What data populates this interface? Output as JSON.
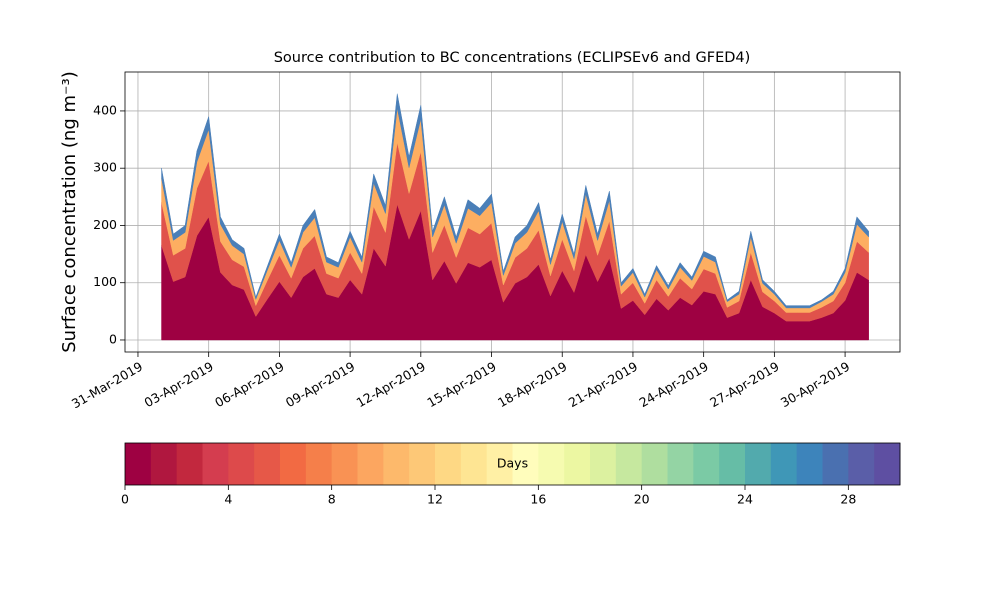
{
  "chart_data": {
    "type": "stacked_area",
    "title": "Source contribution to BC concentrations (ECLIPSEv6 and GFED4)",
    "y_label": "Surface concentration (ng m⁻³)",
    "x": [
      1,
      1.5,
      2,
      2.5,
      3,
      3.5,
      4,
      4.5,
      5,
      5.5,
      6,
      6.5,
      7,
      7.5,
      8,
      8.5,
      9,
      9.5,
      10,
      10.5,
      11,
      11.5,
      12,
      12.5,
      13,
      13.5,
      14,
      14.5,
      15,
      15.5,
      16,
      16.5,
      17,
      17.5,
      18,
      18.5,
      19,
      19.5,
      20,
      20.5,
      21,
      21.5,
      22,
      22.5,
      23,
      23.5,
      24,
      24.5,
      25,
      25.5,
      26,
      26.5,
      27,
      27.5,
      28,
      28.5,
      29,
      29.5,
      30,
      30.5,
      31
    ],
    "series": [
      {
        "color": "#9e0142",
        "values": [
          165,
          102,
          110,
          182,
          215,
          118,
          96,
          88,
          41,
          72,
          102,
          74,
          110,
          125,
          80,
          74,
          105,
          80,
          160,
          129,
          237,
          176,
          226,
          105,
          138,
          99,
          135,
          127,
          140,
          66,
          99,
          110,
          132,
          77,
          121,
          83,
          149,
          102,
          143,
          55,
          69,
          44,
          72,
          52,
          74,
          61,
          85,
          80,
          39,
          47,
          105,
          58,
          47,
          33,
          33,
          33,
          39,
          47,
          69,
          118,
          105
        ]
      },
      {
        "color": "#e0524b",
        "values": [
          75,
          46,
          50,
          83,
          98,
          54,
          44,
          40,
          19,
          33,
          46,
          34,
          50,
          57,
          36,
          34,
          48,
          36,
          73,
          59,
          108,
          80,
          103,
          48,
          63,
          45,
          61,
          58,
          64,
          30,
          45,
          50,
          60,
          35,
          55,
          38,
          68,
          46,
          65,
          25,
          31,
          20,
          33,
          24,
          34,
          28,
          39,
          36,
          18,
          21,
          48,
          26,
          21,
          15,
          15,
          15,
          18,
          21,
          31,
          54,
          48
        ]
      },
      {
        "color": "#fdae61",
        "values": [
          42,
          26,
          28,
          46,
          55,
          30,
          25,
          22,
          11,
          18,
          26,
          19,
          28,
          32,
          20,
          19,
          27,
          20,
          41,
          33,
          60,
          45,
          57,
          27,
          35,
          25,
          34,
          32,
          36,
          17,
          25,
          28,
          34,
          20,
          31,
          21,
          38,
          26,
          36,
          14,
          18,
          11,
          18,
          13,
          19,
          15,
          22,
          20,
          10,
          12,
          27,
          15,
          12,
          8,
          8,
          8,
          10,
          12,
          18,
          30,
          27
        ]
      },
      {
        "color": "#4a7fb8",
        "values": [
          18,
          11,
          12,
          19,
          22,
          13,
          10,
          10,
          4,
          7,
          11,
          8,
          12,
          14,
          9,
          8,
          10,
          9,
          16,
          14,
          25,
          19,
          24,
          10,
          14,
          11,
          15,
          13,
          15,
          7,
          11,
          12,
          14,
          8,
          13,
          8,
          15,
          11,
          16,
          6,
          7,
          5,
          7,
          6,
          8,
          6,
          9,
          9,
          3,
          5,
          10,
          6,
          5,
          4,
          4,
          4,
          3,
          5,
          7,
          13,
          10
        ]
      }
    ],
    "xlim": [
      -0.55,
      32.33
    ],
    "ylim": [
      -21,
      468
    ],
    "xticks": [
      {
        "value": 0,
        "label": "31-Mar-2019"
      },
      {
        "value": 3,
        "label": "03-Apr-2019"
      },
      {
        "value": 6,
        "label": "06-Apr-2019"
      },
      {
        "value": 9,
        "label": "09-Apr-2019"
      },
      {
        "value": 12,
        "label": "12-Apr-2019"
      },
      {
        "value": 15,
        "label": "15-Apr-2019"
      },
      {
        "value": 18,
        "label": "18-Apr-2019"
      },
      {
        "value": 21,
        "label": "21-Apr-2019"
      },
      {
        "value": 24,
        "label": "24-Apr-2019"
      },
      {
        "value": 27,
        "label": "27-Apr-2019"
      },
      {
        "value": 30,
        "label": "30-Apr-2019"
      }
    ],
    "yticks": [
      0,
      100,
      200,
      300,
      400
    ],
    "grid": true,
    "colorbar": {
      "label": "Days",
      "lim": [
        0,
        30
      ],
      "ticks": [
        0,
        4,
        8,
        12,
        16,
        20,
        24,
        28
      ],
      "colors": [
        "#9e0142",
        "#b0173f",
        "#c2283e",
        "#d43d4f",
        "#dd4a4b",
        "#e65848",
        "#f26a43",
        "#f57f4a",
        "#f99254",
        "#fca660",
        "#fdb96b",
        "#fdc877",
        "#fed884",
        "#fee593",
        "#fff0a5",
        "#fffdbc",
        "#f6fbb0",
        "#ecf7a2",
        "#dcf1a0",
        "#c6e89f",
        "#afde9f",
        "#94d4a4",
        "#7bcaa5",
        "#66bda6",
        "#52aaad",
        "#3f97b7",
        "#3d84bb",
        "#4a70b0",
        "#5a5ea8",
        "#5e4fa2"
      ]
    }
  }
}
